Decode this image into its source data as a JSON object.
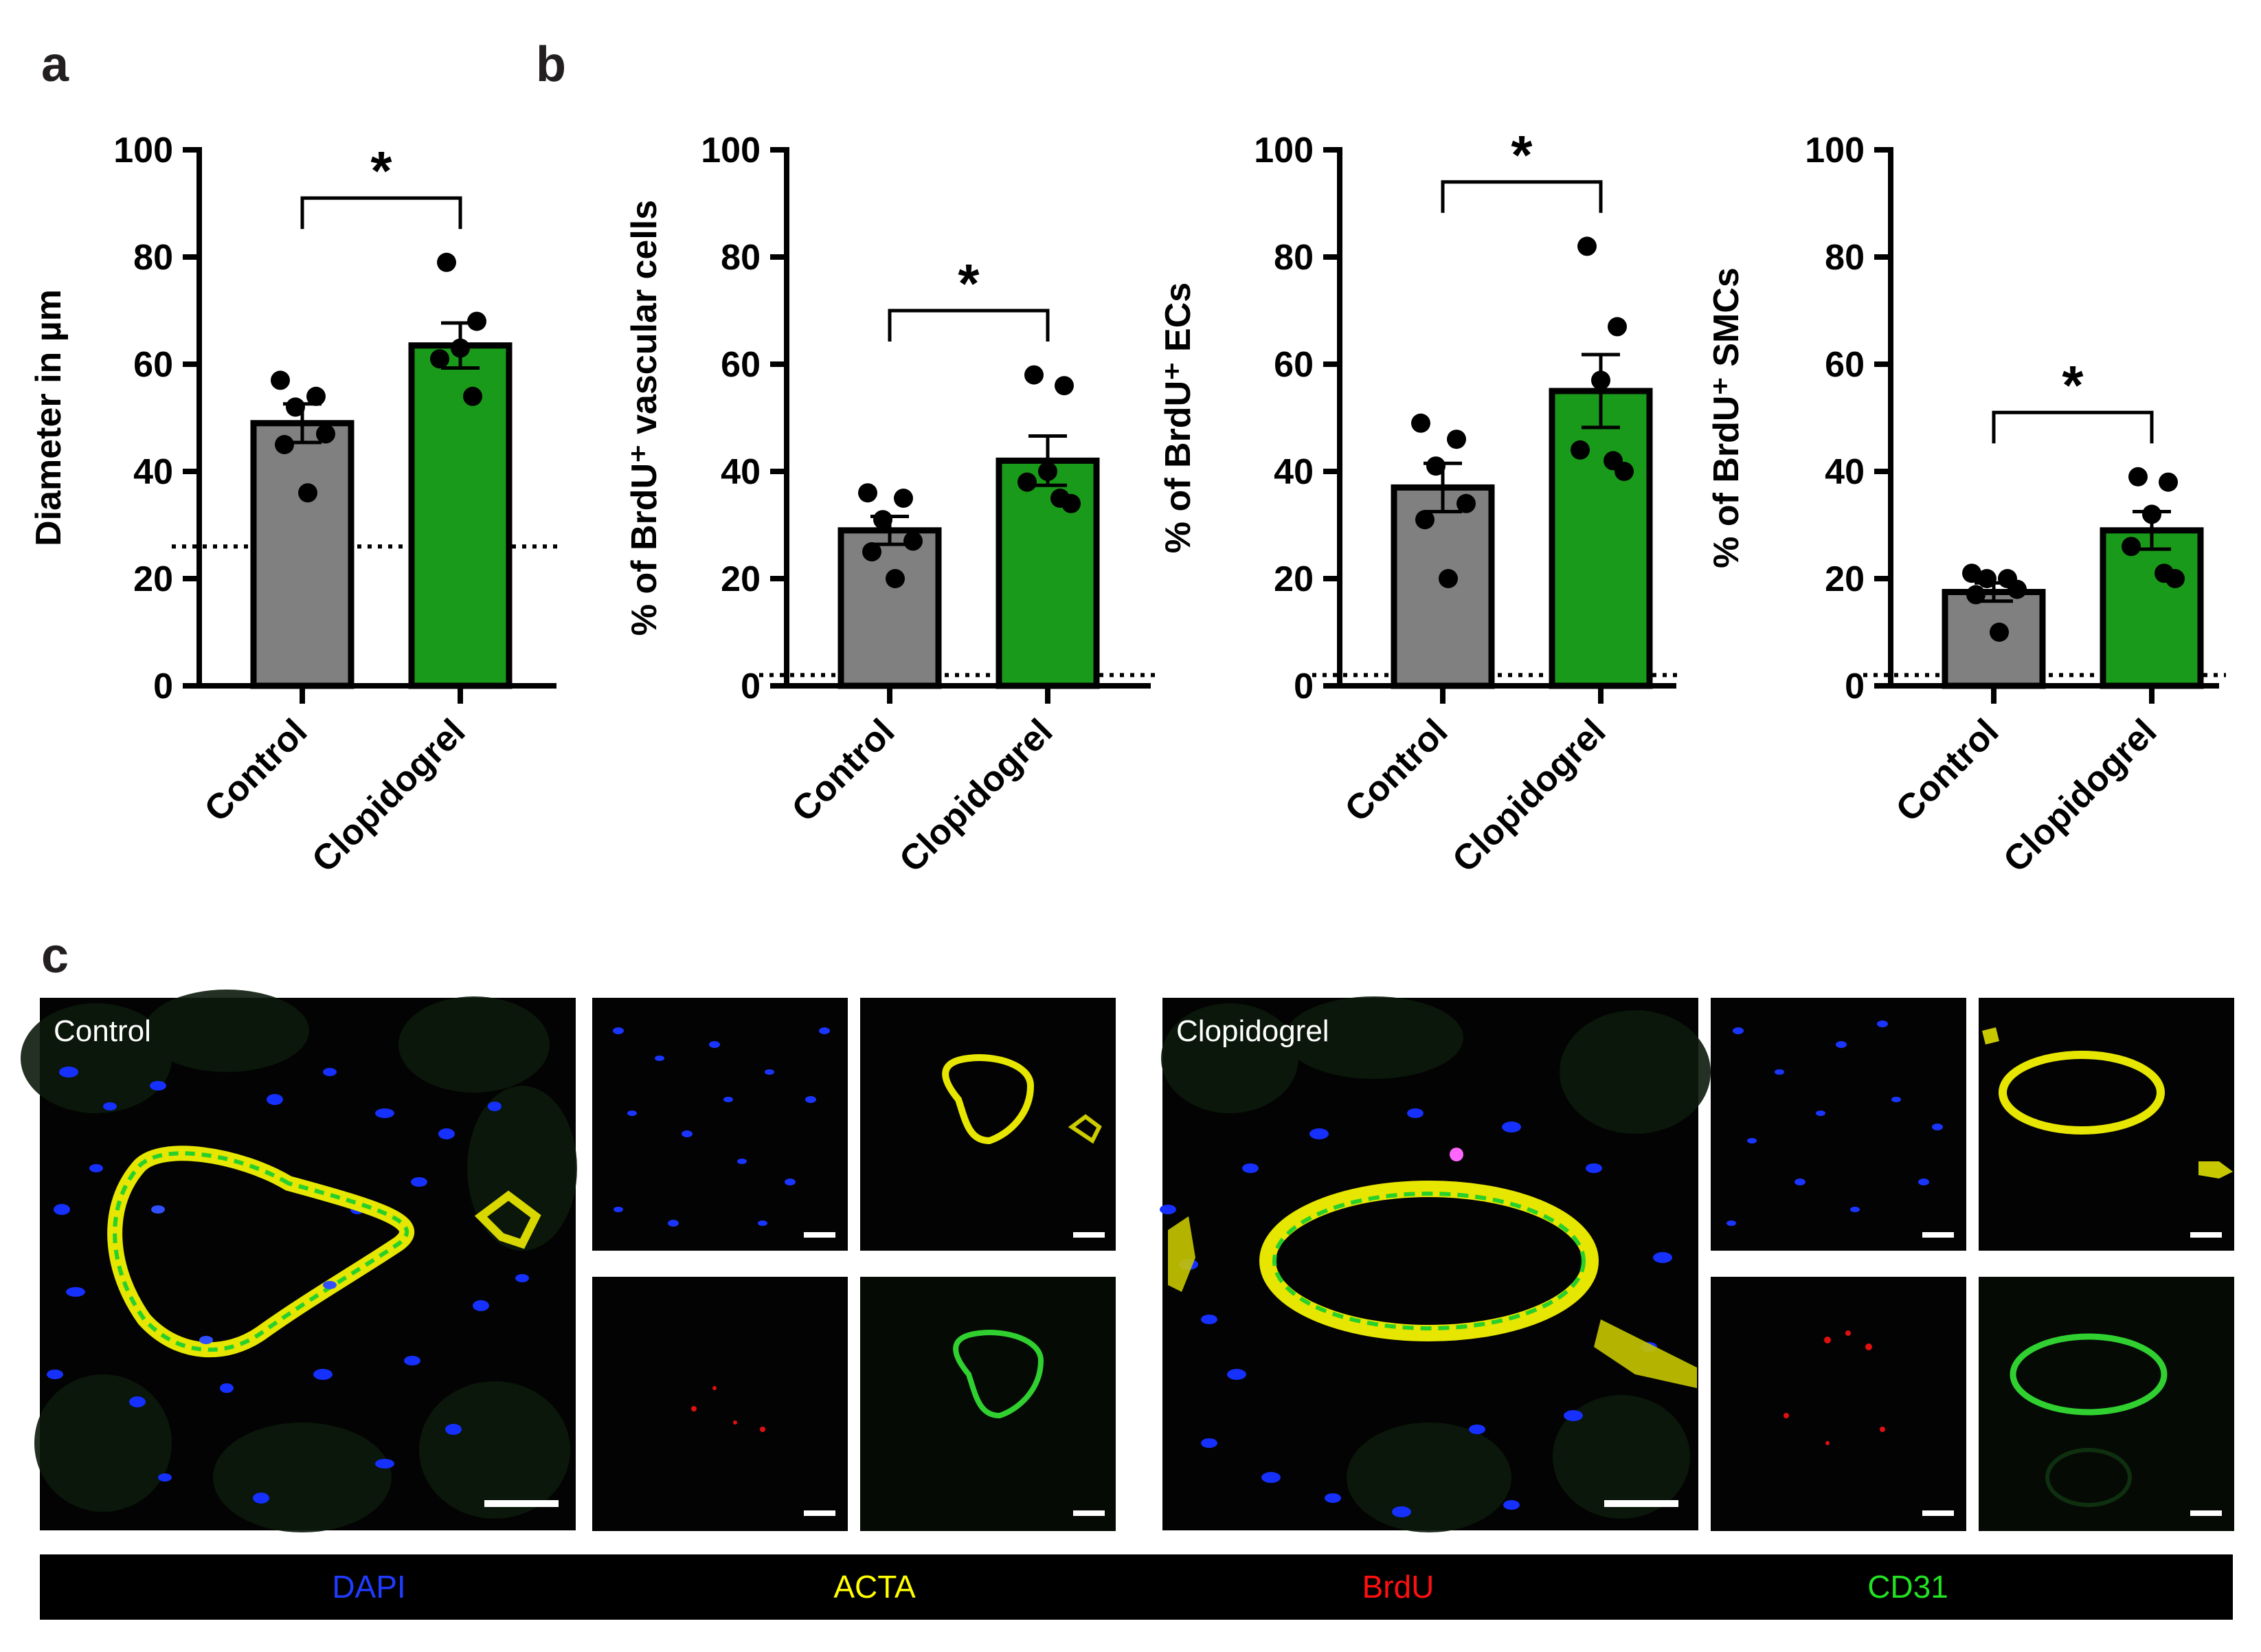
{
  "panels": {
    "a": "a",
    "b": "b",
    "c": "c"
  },
  "colors": {
    "control": "#808080",
    "clopidogrel": "#1a9a1a",
    "dapi": "#1f3cff",
    "acta": "#ffff00",
    "brdu": "#ff0000",
    "cd31": "#22e022"
  },
  "chart_data": [
    {
      "type": "bar",
      "id": "diameter",
      "ylabel": "Diameter in µm",
      "ylim": [
        0,
        100
      ],
      "yticks": [
        0,
        20,
        40,
        60,
        80,
        100
      ],
      "categories": [
        "Control",
        "Clopidogrel"
      ],
      "values": [
        49,
        63.5
      ],
      "sem": [
        3.6,
        4.2
      ],
      "points": [
        [
          57,
          54,
          52,
          47,
          45,
          36
        ],
        [
          79,
          68,
          63,
          61,
          54
        ]
      ],
      "baseline": 26,
      "significance": "*"
    },
    {
      "type": "bar",
      "id": "brdu-vascular",
      "ylabel": "% of BrdU⁺ vascular cells",
      "ylim": [
        0,
        100
      ],
      "yticks": [
        0,
        20,
        40,
        60,
        80,
        100
      ],
      "categories": [
        "Control",
        "Clopidogrel"
      ],
      "values": [
        29,
        42
      ],
      "sem": [
        2.6,
        4.6
      ],
      "points": [
        [
          36,
          35,
          31,
          27,
          25,
          20
        ],
        [
          58,
          56,
          40,
          38,
          35,
          34
        ]
      ],
      "baseline": 2,
      "significance": "*"
    },
    {
      "type": "bar",
      "id": "brdu-ecs",
      "ylabel": "% of BrdU⁺ ECs",
      "ylim": [
        0,
        100
      ],
      "yticks": [
        0,
        20,
        40,
        60,
        80,
        100
      ],
      "categories": [
        "Control",
        "Clopidogrel"
      ],
      "values": [
        37,
        55
      ],
      "sem": [
        4.5,
        6.8
      ],
      "points": [
        [
          49,
          46,
          41,
          34,
          31,
          20
        ],
        [
          82,
          67,
          57,
          44,
          42,
          40
        ]
      ],
      "baseline": 2,
      "significance": "*"
    },
    {
      "type": "bar",
      "id": "brdu-smcs",
      "ylabel": "% of BrdU⁺ SMCs",
      "ylim": [
        0,
        100
      ],
      "yticks": [
        0,
        20,
        40,
        60,
        80,
        100
      ],
      "categories": [
        "Control",
        "Clopidogrel"
      ],
      "values": [
        17.5,
        29
      ],
      "sem": [
        1.7,
        3.5
      ],
      "points": [
        [
          21,
          20,
          20,
          18,
          17,
          10
        ],
        [
          39,
          38,
          32,
          26,
          21,
          20
        ]
      ],
      "baseline": 2,
      "significance": "*"
    }
  ],
  "micrographs": {
    "control_label": "Control",
    "clopidogrel_label": "Clopidogrel"
  },
  "legend": {
    "dapi": "DAPI",
    "acta": "ACTA",
    "brdu": "BrdU",
    "cd31": "CD31"
  }
}
